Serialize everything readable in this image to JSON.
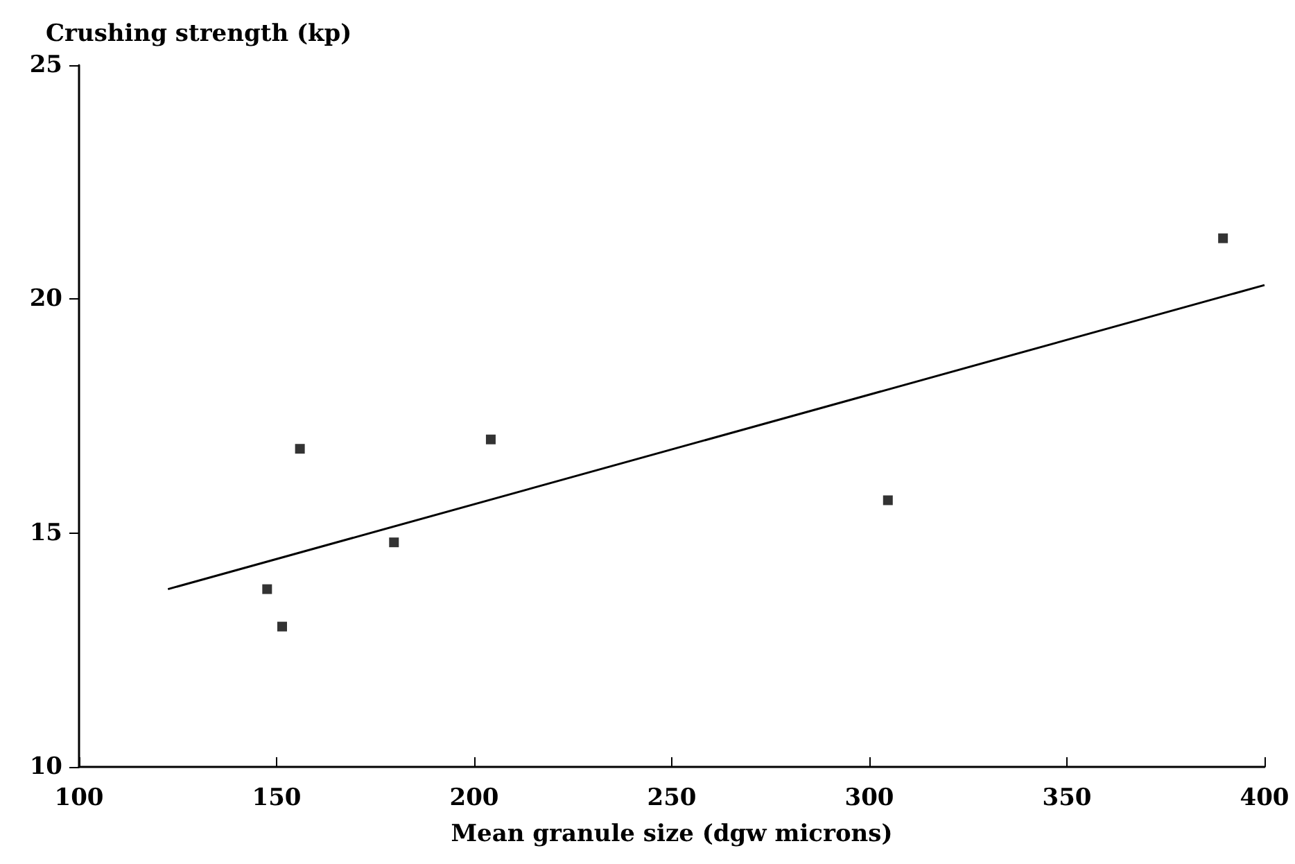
{
  "chart_data": {
    "type": "scatter",
    "xlabel": "Mean granule size (dgw microns)",
    "ylabel": "Crushing strength (kp)",
    "xlim": [
      100,
      400
    ],
    "xticks": [
      100,
      150,
      200,
      250,
      300,
      350,
      400
    ],
    "ylim": [
      10,
      25
    ],
    "yticks": [
      10,
      15,
      20,
      25
    ],
    "grid": false,
    "marker": "square",
    "series": [
      {
        "color": "#000000",
        "x": [
          147.6,
          151.4,
          155.9,
          179.7,
          204.2,
          304.7,
          389.5
        ],
        "values": [
          13.8,
          13.0,
          16.8,
          14.8,
          17.0,
          15.7,
          21.3
        ]
      },
      {
        "type": "line",
        "color": "#000000",
        "marker": "none",
        "line_style": "solid",
        "x": [
          122.5,
          400
        ],
        "values": [
          13.8,
          20.3
        ]
      }
    ]
  }
}
